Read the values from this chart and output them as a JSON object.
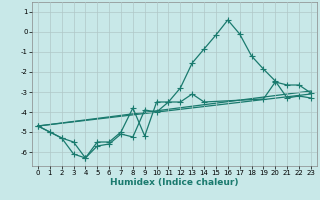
{
  "xlabel": "Humidex (Indice chaleur)",
  "xlim": [
    -0.5,
    23.5
  ],
  "ylim": [
    -6.7,
    1.5
  ],
  "yticks": [
    1,
    0,
    -1,
    -2,
    -3,
    -4,
    -5,
    -6
  ],
  "xticks": [
    0,
    1,
    2,
    3,
    4,
    5,
    6,
    7,
    8,
    9,
    10,
    11,
    12,
    13,
    14,
    15,
    16,
    17,
    18,
    19,
    20,
    21,
    22,
    23
  ],
  "background_color": "#c8e8e8",
  "grid_color": "#b0c8c8",
  "line_color": "#1a7a6e",
  "line1_x": [
    0,
    1,
    2,
    3,
    4,
    5,
    6,
    7,
    8,
    9,
    10,
    11,
    12,
    13,
    14,
    15,
    16,
    17,
    18,
    19,
    20,
    21,
    22,
    23
  ],
  "line1_y": [
    -4.7,
    -5.0,
    -5.3,
    -6.1,
    -6.3,
    -5.7,
    -5.6,
    -5.1,
    -5.25,
    -3.9,
    -4.0,
    -3.5,
    -2.8,
    -1.55,
    -0.85,
    -0.15,
    0.6,
    -0.1,
    -1.2,
    -1.85,
    -2.45,
    -3.3,
    -3.2,
    -3.3
  ],
  "line2_x": [
    0,
    23
  ],
  "line2_y": [
    -4.7,
    -3.1
  ],
  "line3_x": [
    0,
    23
  ],
  "line3_y": [
    -4.7,
    -2.95
  ],
  "line4_x": [
    0,
    1,
    2,
    3,
    4,
    5,
    6,
    7,
    8,
    9,
    10,
    11,
    12,
    13,
    14,
    19,
    20,
    21,
    22,
    23
  ],
  "line4_y": [
    -4.7,
    -5.0,
    -5.3,
    -5.5,
    -6.3,
    -5.5,
    -5.5,
    -5.0,
    -3.8,
    -5.2,
    -3.5,
    -3.5,
    -3.5,
    -3.1,
    -3.5,
    -3.35,
    -2.5,
    -2.65,
    -2.65,
    -3.05
  ],
  "marker": "+",
  "markersize": 4,
  "linewidth": 0.9
}
